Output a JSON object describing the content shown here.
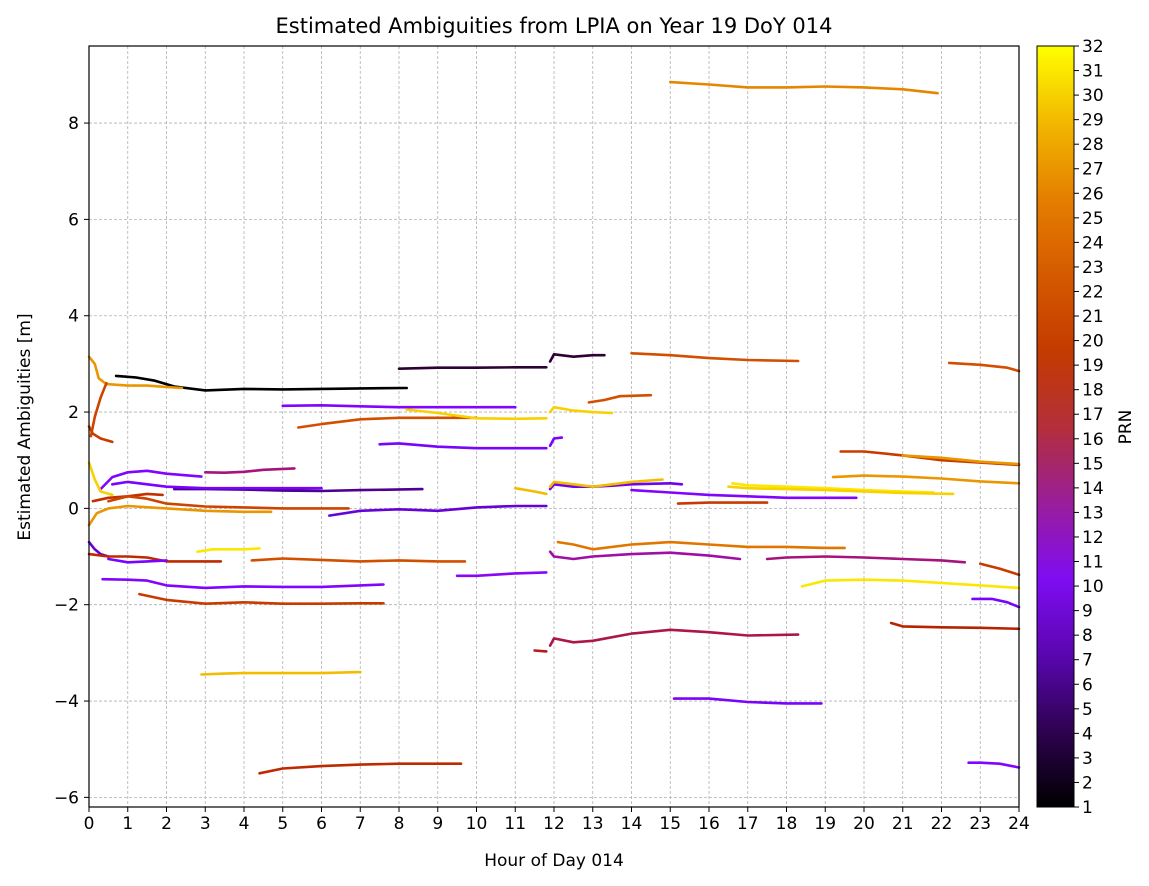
{
  "chart_data": {
    "type": "line",
    "title": "Estimated Ambiguities from LPIA on Year 19 DoY 014",
    "xlabel": "Hour of Day 014",
    "ylabel": "Estimated Ambiguities [m]",
    "xlim": [
      0,
      24
    ],
    "ylim": [
      -6.2,
      9.6
    ],
    "x_ticks": [
      0,
      1,
      2,
      3,
      4,
      5,
      6,
      7,
      8,
      9,
      10,
      11,
      12,
      13,
      14,
      15,
      16,
      17,
      18,
      19,
      20,
      21,
      22,
      23,
      24
    ],
    "y_ticks": [
      -6,
      -4,
      -2,
      0,
      2,
      4,
      6,
      8
    ],
    "y_tick_labels": [
      "−6",
      "−4",
      "−2",
      "0",
      "2",
      "4",
      "6",
      "8"
    ],
    "grid": true,
    "colorbar": {
      "label": "PRN",
      "colormap": "gnuplot",
      "min": 1,
      "max": 32,
      "ticks": [
        1,
        2,
        3,
        4,
        5,
        6,
        7,
        8,
        9,
        10,
        11,
        12,
        13,
        14,
        15,
        16,
        17,
        18,
        19,
        20,
        21,
        22,
        23,
        24,
        25,
        26,
        27,
        28,
        29,
        30,
        31,
        32
      ]
    },
    "series": [
      {
        "prn": 26,
        "x": [
          15.0,
          16.0,
          17.0,
          18.0,
          19.0,
          20.0,
          21.0,
          21.9
        ],
        "y": [
          8.85,
          8.8,
          8.74,
          8.74,
          8.76,
          8.74,
          8.7,
          8.62
        ]
      },
      {
        "prn": 1,
        "x": [
          0.7,
          1.2,
          1.7,
          2.2,
          3.0,
          4.0,
          5.0,
          6.0,
          7.0,
          8.2
        ],
        "y": [
          2.75,
          2.72,
          2.65,
          2.53,
          2.45,
          2.48,
          2.47,
          2.48,
          2.49,
          2.5
        ]
      },
      {
        "prn": 2,
        "x": [
          8.0,
          9.0,
          10.0,
          11.0,
          11.8
        ],
        "y": [
          2.9,
          2.92,
          2.92,
          2.93,
          2.93
        ]
      },
      {
        "prn": 2,
        "x": [
          11.9,
          12.0,
          12.5,
          13.0,
          13.3
        ],
        "y": [
          3.05,
          3.2,
          3.15,
          3.18,
          3.18
        ]
      },
      {
        "prn": 22,
        "x": [
          14.0,
          15.0,
          16.0,
          17.0,
          18.3
        ],
        "y": [
          3.22,
          3.18,
          3.12,
          3.08,
          3.06
        ]
      },
      {
        "prn": 22,
        "x": [
          22.2,
          23.0,
          23.7,
          24.0
        ],
        "y": [
          3.02,
          2.98,
          2.92,
          2.85
        ]
      },
      {
        "prn": 27,
        "x": [
          0.0,
          0.15,
          0.25,
          0.45,
          1.0,
          1.5,
          2.0,
          2.4
        ],
        "y": [
          3.15,
          3.0,
          2.7,
          2.58,
          2.55,
          2.55,
          2.52,
          2.5
        ]
      },
      {
        "prn": 20,
        "x": [
          0.0,
          0.1,
          0.3,
          0.6
        ],
        "y": [
          1.7,
          1.55,
          1.45,
          1.38
        ]
      },
      {
        "prn": 21,
        "x": [
          0.05,
          0.15,
          0.3,
          0.45
        ],
        "y": [
          1.5,
          1.9,
          2.3,
          2.6
        ]
      },
      {
        "prn": 9,
        "x": [
          5.0,
          6.0,
          7.0,
          8.0,
          9.0,
          10.0,
          11.0
        ],
        "y": [
          2.13,
          2.14,
          2.12,
          2.1,
          2.1,
          2.1,
          2.1
        ]
      },
      {
        "prn": 22,
        "x": [
          5.4,
          6.0,
          7.0,
          8.0,
          9.0,
          10.0
        ],
        "y": [
          1.68,
          1.75,
          1.85,
          1.88,
          1.88,
          1.88
        ]
      },
      {
        "prn": 30,
        "x": [
          8.2,
          9.0,
          10.0,
          11.0,
          11.8
        ],
        "y": [
          2.05,
          1.98,
          1.87,
          1.86,
          1.87
        ]
      },
      {
        "prn": 30,
        "x": [
          11.9,
          12.0,
          12.5,
          13.0,
          13.5
        ],
        "y": [
          2.0,
          2.1,
          2.03,
          2.0,
          1.98
        ]
      },
      {
        "prn": 22,
        "x": [
          12.9,
          13.3,
          13.7,
          14.5
        ],
        "y": [
          2.2,
          2.25,
          2.33,
          2.35
        ]
      },
      {
        "prn": 8,
        "x": [
          7.5,
          8.0,
          9.0,
          10.0,
          11.0,
          11.8
        ],
        "y": [
          1.33,
          1.35,
          1.28,
          1.25,
          1.25,
          1.25
        ]
      },
      {
        "prn": 8,
        "x": [
          11.9,
          12.0,
          12.2
        ],
        "y": [
          1.3,
          1.45,
          1.47
        ]
      },
      {
        "prn": 20,
        "x": [
          19.4,
          20.0,
          21.0,
          22.0,
          23.0,
          24.0
        ],
        "y": [
          1.18,
          1.18,
          1.1,
          1.0,
          0.95,
          0.9
        ]
      },
      {
        "prn": 27,
        "x": [
          21.0,
          22.0,
          23.0,
          24.0
        ],
        "y": [
          1.1,
          1.05,
          0.97,
          0.92
        ]
      },
      {
        "prn": 14,
        "x": [
          3.0,
          3.5,
          4.0,
          4.5,
          5.3
        ],
        "y": [
          0.75,
          0.74,
          0.76,
          0.8,
          0.83
        ]
      },
      {
        "prn": 9,
        "x": [
          0.3,
          0.6,
          1.0,
          1.5,
          2.0,
          2.9
        ],
        "y": [
          0.4,
          0.65,
          0.75,
          0.78,
          0.72,
          0.66
        ]
      },
      {
        "prn": 4,
        "x": [
          2.2,
          3.0,
          4.0,
          5.0,
          6.0,
          7.0,
          8.6
        ],
        "y": [
          0.4,
          0.4,
          0.39,
          0.37,
          0.36,
          0.38,
          0.4
        ]
      },
      {
        "prn": 8,
        "x": [
          0.6,
          1.0,
          2.0,
          3.0,
          4.0,
          5.0,
          6.0
        ],
        "y": [
          0.5,
          0.55,
          0.45,
          0.42,
          0.42,
          0.42,
          0.42
        ]
      },
      {
        "prn": 19,
        "x": [
          0.1,
          0.5,
          1.0,
          1.5,
          1.9
        ],
        "y": [
          0.15,
          0.22,
          0.25,
          0.3,
          0.28
        ]
      },
      {
        "prn": 21,
        "x": [
          0.5,
          1.0,
          1.5,
          2.0,
          3.0,
          4.0,
          5.0,
          6.0,
          6.7
        ],
        "y": [
          0.15,
          0.25,
          0.2,
          0.1,
          0.04,
          0.02,
          0.0,
          0.0,
          0.0
        ]
      },
      {
        "prn": 27,
        "x": [
          0.0,
          0.2,
          0.5,
          1.0,
          2.0,
          3.0,
          4.0,
          4.7
        ],
        "y": [
          -0.35,
          -0.1,
          0.0,
          0.05,
          0.0,
          -0.05,
          -0.07,
          -0.07
        ]
      },
      {
        "prn": 30,
        "x": [
          0.0,
          0.15,
          0.3,
          0.6
        ],
        "y": [
          0.95,
          0.6,
          0.35,
          0.28
        ]
      },
      {
        "prn": 6,
        "x": [
          0.0,
          0.15,
          0.3,
          0.5
        ],
        "y": [
          -0.7,
          -0.85,
          -0.95,
          -1.0
        ]
      },
      {
        "prn": 6,
        "x": [
          6.2,
          7.0,
          8.0,
          9.0,
          10.0,
          11.0,
          11.8
        ],
        "y": [
          -0.15,
          -0.05,
          -0.02,
          -0.05,
          0.02,
          0.05,
          0.05
        ]
      },
      {
        "prn": 7,
        "x": [
          11.9,
          12.0,
          12.5,
          13.0,
          13.5,
          14.0,
          15.0,
          15.3
        ],
        "y": [
          0.4,
          0.5,
          0.45,
          0.45,
          0.47,
          0.5,
          0.52,
          0.5
        ]
      },
      {
        "prn": 29,
        "x": [
          11.0,
          11.5,
          11.8
        ],
        "y": [
          0.42,
          0.35,
          0.3
        ]
      },
      {
        "prn": 29,
        "x": [
          11.9,
          12.0,
          12.5,
          13.0,
          14.0,
          14.8
        ],
        "y": [
          0.45,
          0.55,
          0.5,
          0.45,
          0.55,
          0.6
        ]
      },
      {
        "prn": 9,
        "x": [
          14.0,
          15.0,
          16.0,
          17.0,
          18.0,
          19.8
        ],
        "y": [
          0.38,
          0.33,
          0.28,
          0.25,
          0.22,
          0.22
        ]
      },
      {
        "prn": 31,
        "x": [
          16.6,
          17.0,
          18.0,
          19.0,
          20.0,
          21.0,
          21.8
        ],
        "y": [
          0.52,
          0.48,
          0.45,
          0.42,
          0.38,
          0.35,
          0.33
        ]
      },
      {
        "prn": 27,
        "x": [
          19.2,
          20.0,
          21.0,
          22.0,
          23.0,
          24.0
        ],
        "y": [
          0.65,
          0.68,
          0.66,
          0.62,
          0.56,
          0.52
        ]
      },
      {
        "prn": 30,
        "x": [
          16.5,
          17.0,
          18.0,
          19.0,
          20.0,
          21.0,
          22.3
        ],
        "y": [
          0.45,
          0.42,
          0.4,
          0.38,
          0.35,
          0.32,
          0.3
        ]
      },
      {
        "prn": 20,
        "x": [
          15.2,
          16.0,
          17.0,
          17.5
        ],
        "y": [
          0.1,
          0.12,
          0.12,
          0.12
        ]
      },
      {
        "prn": 18,
        "x": [
          0.0,
          0.5,
          1.0,
          1.5,
          2.0,
          3.0,
          3.4
        ],
        "y": [
          -0.95,
          -1.0,
          -1.0,
          -1.02,
          -1.1,
          -1.1,
          -1.1
        ]
      },
      {
        "prn": 8,
        "x": [
          0.5,
          1.0,
          1.5,
          2.0
        ],
        "y": [
          -1.05,
          -1.12,
          -1.1,
          -1.08
        ]
      },
      {
        "prn": 22,
        "x": [
          4.2,
          5.0,
          6.0,
          7.0,
          8.0,
          9.0,
          9.7
        ],
        "y": [
          -1.08,
          -1.04,
          -1.07,
          -1.1,
          -1.08,
          -1.1,
          -1.1
        ]
      },
      {
        "prn": 31,
        "x": [
          2.8,
          3.2,
          4.0,
          4.4
        ],
        "y": [
          -0.9,
          -0.85,
          -0.85,
          -0.83
        ]
      },
      {
        "prn": 25,
        "x": [
          12.1,
          12.5,
          13.0,
          14.0,
          15.0,
          16.0,
          17.0,
          18.0,
          19.0,
          19.5
        ],
        "y": [
          -0.7,
          -0.75,
          -0.85,
          -0.75,
          -0.7,
          -0.75,
          -0.8,
          -0.8,
          -0.82,
          -0.82
        ]
      },
      {
        "prn": 13,
        "x": [
          11.9,
          12.0,
          12.5,
          13.0,
          14.0,
          15.0,
          16.0,
          16.8
        ],
        "y": [
          -0.9,
          -1.0,
          -1.05,
          -1.0,
          -0.95,
          -0.92,
          -0.98,
          -1.05
        ]
      },
      {
        "prn": 14,
        "x": [
          17.5,
          18.0,
          19.0,
          20.0,
          21.0,
          22.0,
          22.6
        ],
        "y": [
          -1.05,
          -1.02,
          -1.0,
          -1.02,
          -1.05,
          -1.08,
          -1.12
        ]
      },
      {
        "prn": 10,
        "x": [
          9.5,
          10.0,
          11.0,
          11.8
        ],
        "y": [
          -1.4,
          -1.4,
          -1.35,
          -1.33
        ]
      },
      {
        "prn": 20,
        "x": [
          23.0,
          23.5,
          24.0
        ],
        "y": [
          -1.15,
          -1.25,
          -1.38
        ]
      },
      {
        "prn": 9,
        "x": [
          0.35,
          1.0,
          1.5,
          2.0,
          3.0,
          4.0,
          5.0,
          6.0,
          7.0,
          7.6
        ],
        "y": [
          -1.47,
          -1.48,
          -1.5,
          -1.6,
          -1.65,
          -1.62,
          -1.63,
          -1.63,
          -1.6,
          -1.58
        ]
      },
      {
        "prn": 20,
        "x": [
          1.3,
          2.0,
          3.0,
          4.0,
          5.0,
          6.0,
          7.0,
          7.6
        ],
        "y": [
          -1.78,
          -1.9,
          -1.98,
          -1.95,
          -1.98,
          -1.98,
          -1.97,
          -1.97
        ]
      },
      {
        "prn": 31,
        "x": [
          18.4,
          19.0,
          20.0,
          21.0,
          22.0,
          23.0,
          24.0
        ],
        "y": [
          -1.62,
          -1.5,
          -1.48,
          -1.5,
          -1.55,
          -1.6,
          -1.65
        ]
      },
      {
        "prn": 8,
        "x": [
          22.8,
          23.3,
          23.7,
          24.0
        ],
        "y": [
          -1.88,
          -1.88,
          -1.95,
          -2.05
        ]
      },
      {
        "prn": 16,
        "x": [
          11.5,
          11.8
        ],
        "y": [
          -2.95,
          -2.97
        ]
      },
      {
        "prn": 15,
        "x": [
          11.9,
          12.0,
          12.5,
          13.0,
          14.0,
          15.0,
          16.0,
          17.0,
          18.3
        ],
        "y": [
          -2.85,
          -2.7,
          -2.78,
          -2.75,
          -2.6,
          -2.52,
          -2.57,
          -2.64,
          -2.62
        ]
      },
      {
        "prn": 17,
        "x": [
          20.7,
          21.0,
          22.0,
          23.0,
          24.0
        ],
        "y": [
          -2.38,
          -2.45,
          -2.47,
          -2.48,
          -2.5
        ]
      },
      {
        "prn": 29,
        "x": [
          2.9,
          3.5,
          4.0,
          5.0,
          6.0,
          7.0
        ],
        "y": [
          -3.45,
          -3.43,
          -3.42,
          -3.42,
          -3.42,
          -3.4
        ]
      },
      {
        "prn": 8,
        "x": [
          15.1,
          16.0,
          17.0,
          18.0,
          18.9
        ],
        "y": [
          -3.95,
          -3.95,
          -4.02,
          -4.05,
          -4.05
        ]
      },
      {
        "prn": 18,
        "x": [
          4.4,
          5.0,
          6.0,
          7.0,
          8.0,
          9.0,
          9.6
        ],
        "y": [
          -5.5,
          -5.4,
          -5.35,
          -5.32,
          -5.3,
          -5.3,
          -5.3
        ]
      },
      {
        "prn": 9,
        "x": [
          22.7,
          23.0,
          23.5,
          24.0
        ],
        "y": [
          -5.28,
          -5.28,
          -5.3,
          -5.38
        ]
      }
    ]
  }
}
